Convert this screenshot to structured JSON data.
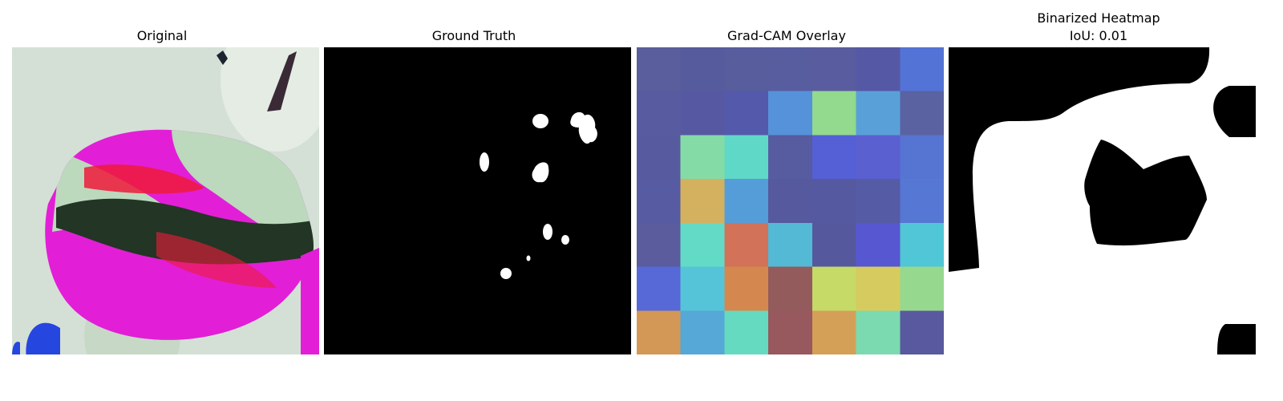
{
  "panels": [
    {
      "title": "Original"
    },
    {
      "title": "Ground Truth"
    },
    {
      "title": "Grad-CAM Overlay"
    },
    {
      "title": "Binarized Heatmap",
      "subtitle": "IoU: 0.01"
    }
  ],
  "gradcam": {
    "grid_size": 7,
    "cells": [
      [
        "#5A5E9C",
        "#565B9D",
        "#575D9D",
        "#585DA0",
        "#595C9E",
        "#5559A5",
        "#5473D6"
      ],
      [
        "#585BA0",
        "#5659A2",
        "#5459AB",
        "#5592D9",
        "#93D98E",
        "#5AA0D8",
        "#5A62A2"
      ],
      [
        "#585A9F",
        "#84DBA6",
        "#60D8C8",
        "#575B9F",
        "#5560D6",
        "#5A60D0",
        "#5674D2"
      ],
      [
        "#575BA1",
        "#D4B15E",
        "#549DD8",
        "#56599E",
        "#55599F",
        "#565BA5",
        "#5677D3"
      ],
      [
        "#5A5C9D",
        "#63DAC6",
        "#D27258",
        "#53B9D5",
        "#56589E",
        "#5758D1",
        "#50C6D6"
      ],
      [
        "#5769D6",
        "#55C4D8",
        "#D4884F",
        "#945B5D",
        "#C6DA67",
        "#D6CB5E",
        "#96D98E"
      ],
      [
        "#D49856",
        "#56A8D6",
        "#66DAC0",
        "#97595D",
        "#D4A058",
        "#7CDAB0",
        "#59599F"
      ]
    ]
  },
  "colors": {
    "background": "#ffffff",
    "mask_background": "#000000",
    "mask_foreground": "#ffffff",
    "leaf_magenta": "#e21fd6",
    "leaf_red": "#ee1a3a",
    "leaf_pale": "#bcd8bd",
    "leaf_dark": "#233524",
    "photo_background": "#d4e0d6"
  }
}
